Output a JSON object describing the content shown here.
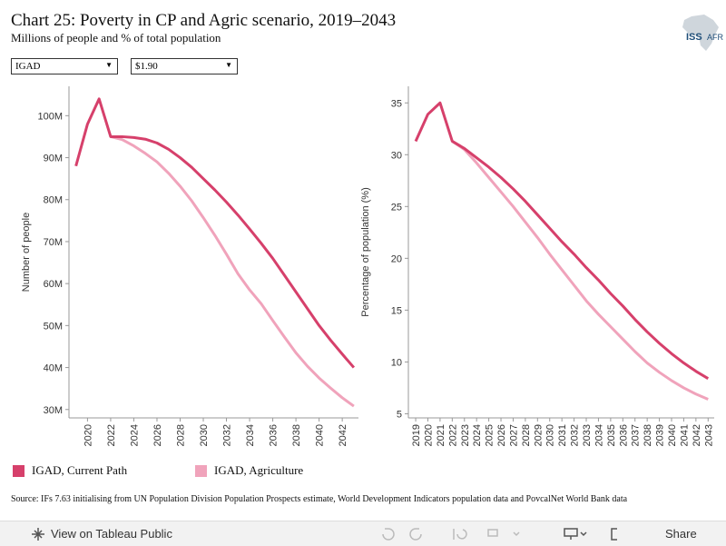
{
  "header": {
    "title": "Chart 25: Poverty in CP and Agric scenario, 2019–2043",
    "subtitle": "Millions of people and % of total population",
    "logo_left": "ISS",
    "logo_right": "AFR"
  },
  "filters": [
    "IGAD",
    "$1.90"
  ],
  "source": "Source: IFs 7.63 initialising from UN Population Division Population Prospects estimate, World Development Indicators population data and PovcalNet World Bank data",
  "toolbar": {
    "view": "View on Tableau Public",
    "share": "Share"
  },
  "chart_data": [
    {
      "type": "line",
      "y_label": "Number of people",
      "x": [
        2019,
        2020,
        2021,
        2022,
        2023,
        2024,
        2025,
        2026,
        2027,
        2028,
        2029,
        2030,
        2031,
        2032,
        2033,
        2034,
        2035,
        2036,
        2037,
        2038,
        2039,
        2040,
        2041,
        2042,
        2043
      ],
      "series": [
        {
          "name": "IGAD, Current Path",
          "color": "#d6406b",
          "values": [
            88,
            98,
            104,
            95,
            95,
            94.8,
            94.4,
            93.5,
            92,
            90,
            87.7,
            85,
            82.3,
            79.4,
            76.3,
            73,
            69.6,
            66,
            62,
            58,
            54,
            50,
            46.5,
            43.2,
            40
          ]
        },
        {
          "name": "IGAD, Agriculture",
          "color": "#f0a3bb",
          "values": [
            null,
            null,
            null,
            95,
            94.3,
            92.8,
            91,
            89,
            86.3,
            83.2,
            79.7,
            75.7,
            71.5,
            67,
            62.3,
            58.5,
            55.2,
            51.2,
            47.3,
            43.5,
            40.3,
            37.5,
            35.1,
            32.8,
            30.8
          ]
        }
      ],
      "xlim": [
        2018.4,
        2043.4
      ],
      "xticks": [
        2020,
        2022,
        2024,
        2026,
        2028,
        2030,
        2032,
        2034,
        2036,
        2038,
        2040,
        2042
      ],
      "ylim": [
        28,
        107
      ],
      "yticks": [
        {
          "value": 30,
          "label": "30M"
        },
        {
          "value": 40,
          "label": "40M"
        },
        {
          "value": 50,
          "label": "50M"
        },
        {
          "value": 60,
          "label": "60M"
        },
        {
          "value": 70,
          "label": "70M"
        },
        {
          "value": 80,
          "label": "80M"
        },
        {
          "value": 90,
          "label": "90M"
        },
        {
          "value": 100,
          "label": "100M"
        }
      ]
    },
    {
      "type": "line",
      "y_label": "Percentage of population (%)",
      "x": [
        2019,
        2020,
        2021,
        2022,
        2023,
        2024,
        2025,
        2026,
        2027,
        2028,
        2029,
        2030,
        2031,
        2032,
        2033,
        2034,
        2035,
        2036,
        2037,
        2038,
        2039,
        2040,
        2041,
        2042,
        2043
      ],
      "series": [
        {
          "name": "IGAD, Current Path",
          "color": "#d6406b",
          "values": [
            31.3,
            33.9,
            35,
            31.3,
            30.6,
            29.7,
            28.8,
            27.8,
            26.7,
            25.5,
            24.2,
            22.9,
            21.6,
            20.4,
            19.1,
            17.9,
            16.6,
            15.4,
            14.1,
            12.9,
            11.8,
            10.8,
            9.9,
            9.1,
            8.4
          ]
        },
        {
          "name": "IGAD, Agriculture",
          "color": "#f0a3bb",
          "values": [
            null,
            null,
            null,
            31.3,
            30.5,
            29.2,
            27.8,
            26.4,
            25,
            23.5,
            22,
            20.4,
            18.9,
            17.4,
            15.9,
            14.6,
            13.4,
            12.2,
            11,
            9.9,
            9,
            8.2,
            7.5,
            6.9,
            6.4
          ]
        }
      ],
      "xlim": [
        2018.4,
        2043.5
      ],
      "xticks": [
        2019,
        2020,
        2021,
        2022,
        2023,
        2024,
        2025,
        2026,
        2027,
        2028,
        2029,
        2030,
        2031,
        2032,
        2033,
        2034,
        2035,
        2036,
        2037,
        2038,
        2039,
        2040,
        2041,
        2042,
        2043
      ],
      "ylim": [
        4.6,
        36.6
      ],
      "yticks": [
        5,
        10,
        15,
        20,
        25,
        30,
        35
      ]
    }
  ]
}
